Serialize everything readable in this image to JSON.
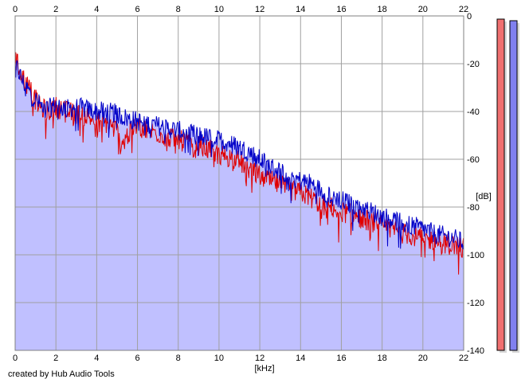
{
  "chart_data": {
    "type": "area",
    "xlabel": "[kHz]",
    "ylabel": "[dB]",
    "credit": "created by Hub Audio Tools",
    "xlim": [
      0,
      22
    ],
    "ylim": [
      -140,
      0
    ],
    "x_ticks": [
      "0",
      "2",
      "4",
      "6",
      "8",
      "10",
      "12",
      "14",
      "16",
      "18",
      "20",
      "22"
    ],
    "y_ticks": [
      "0",
      "-20",
      "-40",
      "-60",
      "-80",
      "-100",
      "-120",
      "-140"
    ],
    "grid": true,
    "colors": {
      "red_line": "#e00000",
      "blue_line": "#0000c8",
      "fill": "#c0c0ff",
      "grid": "#a0a0a0",
      "meter_red": "#f07070",
      "meter_blue": "#8080f0"
    },
    "series": [
      {
        "color": "red",
        "x": [
          0,
          0.2,
          0.4,
          0.8,
          1.2,
          1.6,
          2.0,
          2.5,
          3.0,
          3.5,
          4.0,
          4.5,
          5.0,
          5.2,
          5.5,
          6.0,
          6.5,
          7.0,
          7.5,
          8.0,
          8.5,
          9.0,
          9.5,
          10.0,
          10.5,
          11.0,
          11.5,
          12.0,
          12.5,
          13.0,
          13.5,
          14.0,
          14.5,
          15.0,
          15.5,
          16.0,
          16.5,
          17.0,
          17.5,
          18.0,
          18.5,
          19.0,
          19.5,
          20.0,
          20.5,
          21.0,
          21.5,
          22.0
        ],
        "values": [
          -18,
          -22,
          -26,
          -32,
          -38,
          -40,
          -38,
          -40,
          -41,
          -42,
          -44,
          -45,
          -48,
          -55,
          -50,
          -46,
          -48,
          -49,
          -51,
          -52,
          -53,
          -54,
          -56,
          -58,
          -59,
          -61,
          -64,
          -67,
          -69,
          -71,
          -73,
          -74,
          -76,
          -79,
          -80,
          -82,
          -83,
          -85,
          -86,
          -88,
          -89,
          -91,
          -92,
          -93,
          -94,
          -95,
          -96,
          -97
        ]
      },
      {
        "color": "blue",
        "x": [
          0,
          0.2,
          0.4,
          0.8,
          1.2,
          1.6,
          2.0,
          2.5,
          3.0,
          3.5,
          4.0,
          4.5,
          5.0,
          5.5,
          6.0,
          6.5,
          7.0,
          7.5,
          8.0,
          8.5,
          9.0,
          9.5,
          10.0,
          10.5,
          11.0,
          11.5,
          12.0,
          12.5,
          13.0,
          13.5,
          14.0,
          14.5,
          15.0,
          15.5,
          16.0,
          16.5,
          17.0,
          17.5,
          18.0,
          18.5,
          19.0,
          19.5,
          20.0,
          20.5,
          21.0,
          21.5,
          22.0
        ],
        "values": [
          -20,
          -24,
          -28,
          -33,
          -37,
          -39,
          -37,
          -39,
          -38,
          -39,
          -40,
          -40,
          -41,
          -43,
          -44,
          -45,
          -46,
          -47,
          -48,
          -49,
          -50,
          -51,
          -52,
          -53,
          -55,
          -57,
          -60,
          -63,
          -65,
          -67,
          -69,
          -70,
          -73,
          -75,
          -77,
          -79,
          -80,
          -82,
          -84,
          -85,
          -87,
          -88,
          -89,
          -91,
          -92,
          -93,
          -95
        ]
      }
    ]
  }
}
